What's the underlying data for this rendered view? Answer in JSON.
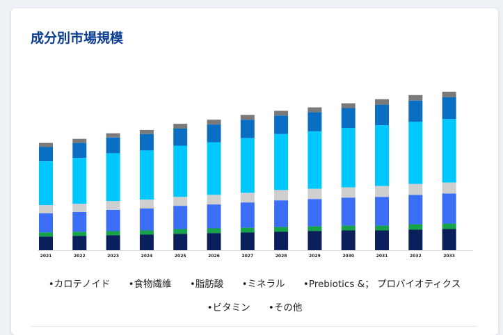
{
  "header": {
    "title": "成分別市場規模"
  },
  "chart_data": {
    "type": "bar",
    "stacked": true,
    "categories": [
      "2021",
      "2022",
      "2023",
      "2024",
      "2025",
      "2026",
      "2027",
      "2028",
      "2029",
      "2030",
      "2031",
      "2032",
      "2033"
    ],
    "ylim": [
      0,
      240
    ],
    "grid": false,
    "legend_position": "bottom",
    "series": [
      {
        "name": "カロテノイド",
        "color": "#0b1f5c",
        "values": [
          20,
          21,
          22,
          23,
          24,
          25,
          26,
          27,
          28,
          29,
          29,
          30,
          31
        ]
      },
      {
        "name": "食物繊維",
        "color": "#16a34a",
        "values": [
          6,
          6,
          6,
          6,
          7,
          7,
          7,
          7,
          7,
          7,
          7,
          8,
          8
        ]
      },
      {
        "name": "脂肪酸",
        "color": "#3b6ef5",
        "values": [
          28,
          29,
          31,
          32,
          34,
          35,
          37,
          39,
          40,
          41,
          42,
          43,
          44
        ]
      },
      {
        "name": "ミネラル",
        "color": "#cfcfcf",
        "values": [
          12,
          12,
          13,
          13,
          13,
          14,
          14,
          15,
          15,
          15,
          16,
          16,
          16
        ]
      },
      {
        "name": "Prebiotics &； プロバイオティクス",
        "color": "#00c8ff",
        "values": [
          64,
          67,
          70,
          72,
          75,
          77,
          80,
          82,
          84,
          87,
          89,
          91,
          93
        ]
      },
      {
        "name": "ビタミン",
        "color": "#0a6fc2",
        "values": [
          21,
          22,
          23,
          24,
          25,
          26,
          27,
          27,
          28,
          29,
          30,
          31,
          32
        ]
      },
      {
        "name": "その他",
        "color": "#7a7a7a",
        "values": [
          6,
          6,
          6,
          6,
          7,
          7,
          7,
          7,
          7,
          7,
          8,
          8,
          8
        ]
      }
    ]
  },
  "legend": {
    "bullet": "•",
    "items": [
      "カロテノイド",
      "食物繊維",
      "脂肪酸",
      "ミネラル",
      "Prebiotics &； プロバイオティクス",
      "ビタミン",
      "その他"
    ]
  }
}
